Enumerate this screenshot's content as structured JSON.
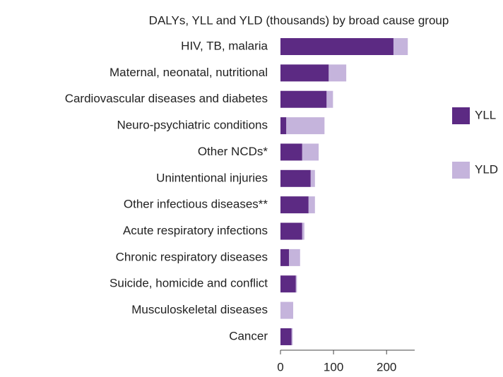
{
  "chart_data": {
    "type": "stacked-barh",
    "title": "DALYs, YLL and YLD (thousands) by broad cause group",
    "categories": [
      "HIV, TB, malaria",
      "Maternal, neonatal, nutritional",
      "Cardiovascular diseases and diabetes",
      "Neuro-psychiatric conditions",
      "Other NCDs*",
      "Unintentional injuries",
      "Other infectious diseases**",
      "Acute respiratory infections",
      "Chronic respiratory diseases",
      "Suicide, homicide and conflict",
      "Musculoskeletal diseases",
      "Cancer"
    ],
    "series": [
      {
        "name": "YLL",
        "color": "#5c2a83",
        "values": [
          213,
          91,
          87,
          11,
          41,
          57,
          53,
          41,
          16,
          29,
          0,
          21
        ]
      },
      {
        "name": "YLD",
        "color": "#c5b4dc",
        "values": [
          27,
          33,
          12,
          72,
          31,
          8,
          12,
          4,
          21,
          2,
          24,
          2
        ]
      }
    ],
    "xlim": [
      0,
      253
    ],
    "xticks": [
      0,
      100,
      200
    ],
    "legend": "right"
  }
}
